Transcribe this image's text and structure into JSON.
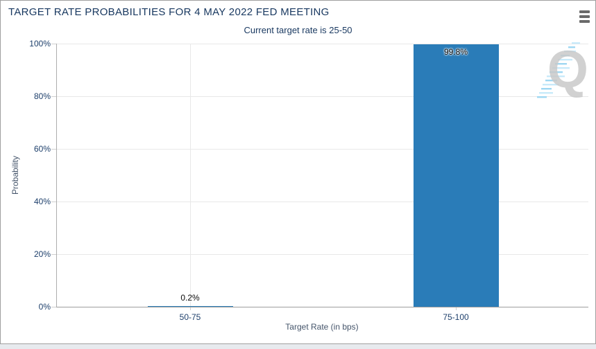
{
  "chart_data": {
    "type": "bar",
    "title": "TARGET RATE PROBABILITIES FOR 4 MAY 2022 FED MEETING",
    "subtitle": "Current target rate is 25-50",
    "categories": [
      "50-75",
      "75-100"
    ],
    "values": [
      0.2,
      99.8
    ],
    "value_labels": [
      "0.2%",
      "99.8%"
    ],
    "xlabel": "Target Rate (in bps)",
    "ylabel": "Probability",
    "ylim": [
      0,
      100
    ],
    "yticks": [
      "0%",
      "20%",
      "40%",
      "60%",
      "80%",
      "100%"
    ],
    "grid": true,
    "legend": false,
    "bar_color": "#2a7cb8"
  },
  "header": {
    "menu_icon": "hamburger-menu-icon"
  },
  "watermark": {
    "letter": "Q"
  },
  "colors": {
    "title_text": "#17375f",
    "tick_text": "#1d3f6b",
    "axis_title_text": "#44546a",
    "bar": "#2a7cb8",
    "grid": "#e8e8e8",
    "tick": "#cfcfcf",
    "axis_line": "#9e9e9e",
    "panel_border": "#9f9f9f",
    "page_bg": "#e7eaee",
    "menu_icon": "#6a6a6a",
    "watermark_gray": "#c9c9c9",
    "watermark_blue": "#9ed7f2"
  }
}
